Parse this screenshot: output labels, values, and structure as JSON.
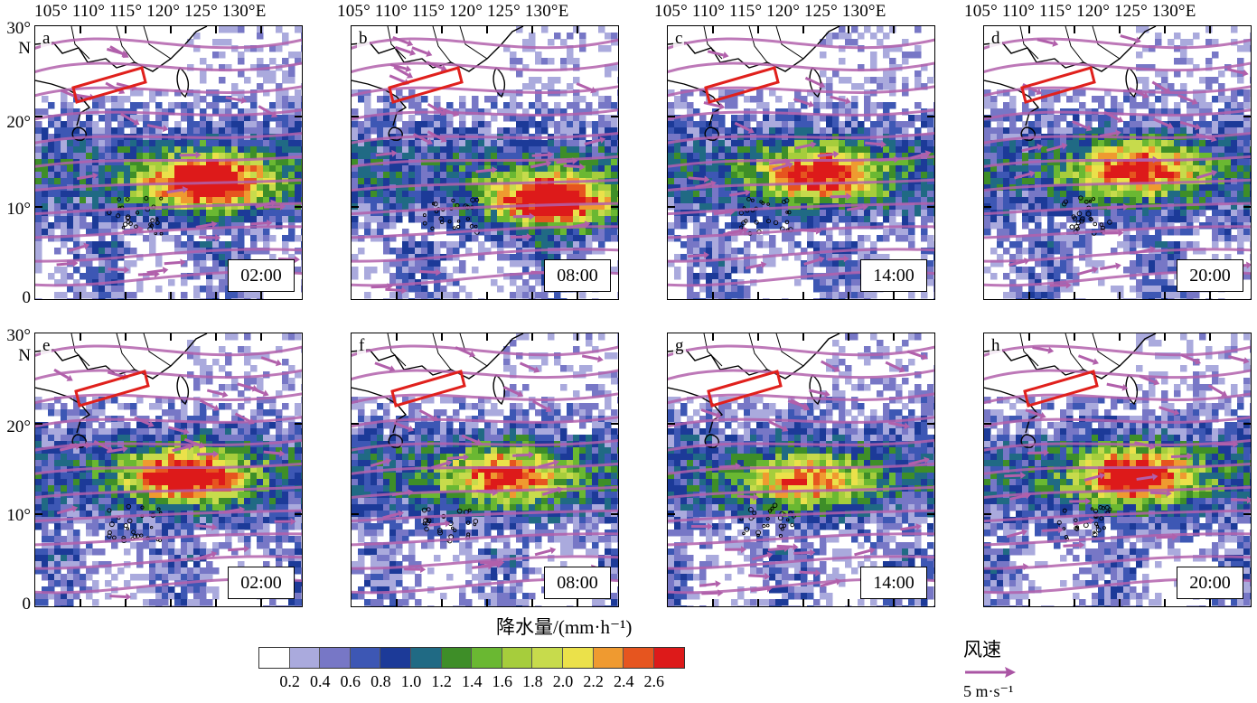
{
  "lon_labels": "105° 110° 115° 120°  125° 130°E",
  "lat_labels": {
    "top": "30°",
    "n": "N",
    "l20": "20°",
    "l10": "10°",
    "l0": "0"
  },
  "panels": [
    {
      "letter": "a",
      "time": "02:00",
      "row": 0,
      "col": 0,
      "seed": 11
    },
    {
      "letter": "b",
      "time": "08:00",
      "row": 0,
      "col": 1,
      "seed": 23
    },
    {
      "letter": "c",
      "time": "14:00",
      "row": 0,
      "col": 2,
      "seed": 37
    },
    {
      "letter": "d",
      "time": "20:00",
      "row": 0,
      "col": 3,
      "seed": 49
    },
    {
      "letter": "e",
      "time": "02:00",
      "row": 1,
      "col": 0,
      "seed": 57
    },
    {
      "letter": "f",
      "time": "08:00",
      "row": 1,
      "col": 1,
      "seed": 63
    },
    {
      "letter": "g",
      "time": "14:00",
      "row": 1,
      "col": 2,
      "seed": 71
    },
    {
      "letter": "h",
      "time": "20:00",
      "row": 1,
      "col": 3,
      "seed": 83
    }
  ],
  "colorbar": {
    "title": "降水量/(mm·h⁻¹)",
    "colors": [
      "#ffffff",
      "#aaaadd",
      "#7777c6",
      "#3d57b4",
      "#1c3a98",
      "#206a84",
      "#3e8e28",
      "#6ab832",
      "#a6cd3c",
      "#c7db4c",
      "#ebe14a",
      "#ef9a30",
      "#e6551f",
      "#dd1a1a"
    ],
    "ticks": [
      "0.2",
      "0.4",
      "0.6",
      "0.8",
      "1.0",
      "1.2",
      "1.4",
      "1.6",
      "1.8",
      "2.0",
      "2.2",
      "2.4",
      "2.6"
    ]
  },
  "wind_legend": {
    "title": "风速",
    "unit": "5 m·s⁻¹",
    "arrow_color": "#aa55a4"
  },
  "box_color": "#e0201c"
}
